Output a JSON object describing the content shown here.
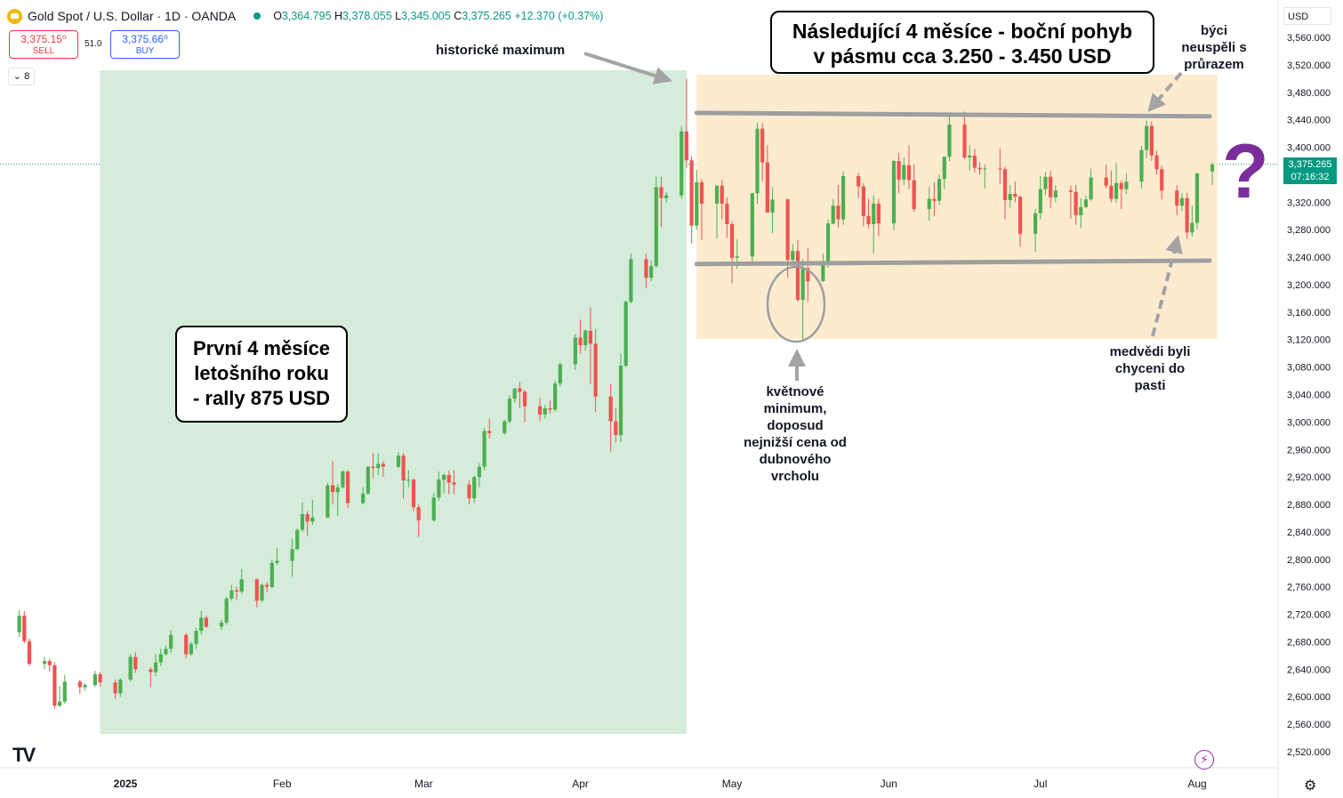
{
  "header": {
    "title": "Gold Spot / U.S. Dollar · 1D · OANDA",
    "ohlc": {
      "o_label": "O",
      "o": "3,364.795",
      "h_label": "H",
      "h": "3,378.055",
      "l_label": "L",
      "l": "3,345.005",
      "c_label": "C",
      "c": "3,375.265",
      "change": "+12.370 (+0.37%)"
    }
  },
  "trade": {
    "sell_price": "3,375.15⁰",
    "sell_label": "SELL",
    "spread": "51.0",
    "buy_price": "3,375.66⁰",
    "buy_label": "BUY"
  },
  "indicators_toggle": "8",
  "currency": "USD",
  "current_price": {
    "price": "3,375.265",
    "countdown": "07:16:32"
  },
  "annotations": {
    "box_sideways": [
      "Následující 4 měsíce - boční pohyb",
      "v pásmu cca 3.250 - 3.450 USD"
    ],
    "box_rally": [
      "První 4 měsíce",
      "letošního roku",
      "- rally 875 USD"
    ],
    "ath": "historické maximum",
    "bulls": [
      "býci",
      "neuspěli s",
      "průrazem"
    ],
    "bears": [
      "medvědi byli",
      "chyceni do",
      "pasti"
    ],
    "may_low": [
      "květnové",
      "minimum,",
      "doposud",
      "nejnižší cena od",
      "dubnového",
      "vrcholu"
    ],
    "question": "?"
  },
  "colors": {
    "up": "#089981",
    "down": "#f23645",
    "up_candle": "#4caf50",
    "down_candle": "#ef5350",
    "green_zone": "#d4ecd9",
    "orange_zone": "#fdebcf",
    "arrow": "#a3a3a3",
    "purple": "#7b2d9b"
  },
  "chart_data": {
    "type": "candlestick",
    "instrument": "Gold Spot / U.S. Dollar",
    "timeframe": "1D",
    "ylim": [
      2500,
      3580
    ],
    "y_ticks": [
      "2,520.000",
      "2,560.000",
      "2,600.000",
      "2,640.000",
      "2,680.000",
      "2,720.000",
      "2,760.000",
      "2,800.000",
      "2,840.000",
      "2,880.000",
      "2,920.000",
      "2,960.000",
      "3,000.000",
      "3,040.000",
      "3,080.000",
      "3,120.000",
      "3,160.000",
      "3,200.000",
      "3,240.000",
      "3,280.000",
      "3,320.000",
      "3,360.000",
      "3,400.000",
      "3,440.000",
      "3,480.000",
      "3,520.000",
      "3,560.000"
    ],
    "x_ticks": [
      {
        "label": "2025",
        "date": "2025-01-01",
        "bold": true
      },
      {
        "label": "Feb",
        "date": "2025-02-01"
      },
      {
        "label": "Mar",
        "date": "2025-03-01"
      },
      {
        "label": "Apr",
        "date": "2025-04-01"
      },
      {
        "label": "May",
        "date": "2025-05-01"
      },
      {
        "label": "Jun",
        "date": "2025-06-01"
      },
      {
        "label": "Jul",
        "date": "2025-07-01"
      },
      {
        "label": "Aug",
        "date": "2025-08-01"
      }
    ],
    "zones": [
      {
        "name": "rally",
        "from": "2024-12-27",
        "to": "2025-04-22",
        "y_from": 2550,
        "y_to": 3510
      },
      {
        "name": "range",
        "from": "2025-04-24",
        "to": "2025-08-05",
        "y_from": 3120,
        "y_to": 3510
      }
    ],
    "trendlines": [
      {
        "name": "resistance",
        "from": "2025-04-24",
        "to": "2025-08-01",
        "y_from": 3450,
        "y_to": 3445
      },
      {
        "name": "support",
        "from": "2025-04-24",
        "to": "2025-08-01",
        "y_from": 3230,
        "y_to": 3235
      }
    ],
    "current_price": 3375.265,
    "candles": [
      [
        "2024-12-11",
        2694,
        2726,
        2687,
        2718
      ],
      [
        "2024-12-12",
        2718,
        2725,
        2678,
        2681
      ],
      [
        "2024-12-13",
        2681,
        2685,
        2645,
        2648
      ],
      [
        "2024-12-16",
        2648,
        2658,
        2640,
        2652
      ],
      [
        "2024-12-17",
        2652,
        2655,
        2637,
        2646
      ],
      [
        "2024-12-18",
        2646,
        2650,
        2583,
        2587
      ],
      [
        "2024-12-19",
        2587,
        2616,
        2585,
        2593
      ],
      [
        "2024-12-20",
        2593,
        2632,
        2590,
        2622
      ],
      [
        "2024-12-23",
        2622,
        2625,
        2604,
        2614
      ],
      [
        "2024-12-24",
        2614,
        2620,
        2609,
        2617
      ],
      [
        "2024-12-26",
        2617,
        2638,
        2614,
        2633
      ],
      [
        "2024-12-27",
        2633,
        2636,
        2615,
        2621
      ],
      [
        "2024-12-30",
        2621,
        2625,
        2597,
        2605
      ],
      [
        "2024-12-31",
        2605,
        2627,
        2600,
        2625
      ],
      [
        "2025-01-02",
        2625,
        2662,
        2622,
        2658
      ],
      [
        "2025-01-03",
        2658,
        2665,
        2635,
        2640
      ],
      [
        "2025-01-06",
        2640,
        2643,
        2614,
        2636
      ],
      [
        "2025-01-07",
        2636,
        2662,
        2630,
        2650
      ],
      [
        "2025-01-08",
        2650,
        2670,
        2645,
        2662
      ],
      [
        "2025-01-09",
        2662,
        2675,
        2660,
        2670
      ],
      [
        "2025-01-10",
        2670,
        2697,
        2664,
        2690
      ],
      [
        "2025-01-13",
        2690,
        2693,
        2656,
        2662
      ],
      [
        "2025-01-14",
        2662,
        2680,
        2660,
        2677
      ],
      [
        "2025-01-15",
        2677,
        2700,
        2670,
        2696
      ],
      [
        "2025-01-16",
        2696,
        2725,
        2690,
        2715
      ],
      [
        "2025-01-17",
        2715,
        2718,
        2700,
        2702
      ],
      [
        "2025-01-20",
        2702,
        2712,
        2697,
        2708
      ],
      [
        "2025-01-21",
        2708,
        2746,
        2705,
        2743
      ],
      [
        "2025-01-22",
        2743,
        2763,
        2740,
        2755
      ],
      [
        "2025-01-23",
        2755,
        2760,
        2741,
        2753
      ],
      [
        "2025-01-24",
        2753,
        2786,
        2750,
        2771
      ],
      [
        "2025-01-27",
        2771,
        2772,
        2730,
        2740
      ],
      [
        "2025-01-28",
        2740,
        2765,
        2738,
        2763
      ],
      [
        "2025-01-29",
        2763,
        2767,
        2752,
        2760
      ],
      [
        "2025-01-30",
        2760,
        2800,
        2758,
        2795
      ],
      [
        "2025-01-31",
        2795,
        2817,
        2792,
        2798
      ],
      [
        "2025-02-03",
        2798,
        2830,
        2775,
        2815
      ],
      [
        "2025-02-04",
        2815,
        2845,
        2813,
        2843
      ],
      [
        "2025-02-05",
        2843,
        2883,
        2840,
        2866
      ],
      [
        "2025-02-06",
        2866,
        2870,
        2834,
        2855
      ],
      [
        "2025-02-07",
        2855,
        2887,
        2850,
        2861
      ],
      [
        "2025-02-10",
        2861,
        2912,
        2860,
        2908
      ],
      [
        "2025-02-11",
        2908,
        2943,
        2880,
        2898
      ],
      [
        "2025-02-12",
        2898,
        2910,
        2863,
        2905
      ],
      [
        "2025-02-13",
        2905,
        2930,
        2903,
        2928
      ],
      [
        "2025-02-14",
        2928,
        2930,
        2875,
        2882
      ],
      [
        "2025-02-17",
        2882,
        2905,
        2880,
        2896
      ],
      [
        "2025-02-18",
        2896,
        2936,
        2894,
        2935
      ],
      [
        "2025-02-19",
        2935,
        2955,
        2918,
        2933
      ],
      [
        "2025-02-20",
        2933,
        2955,
        2923,
        2939
      ],
      [
        "2025-02-21",
        2939,
        2943,
        2920,
        2935
      ],
      [
        "2025-02-24",
        2935,
        2956,
        2933,
        2951
      ],
      [
        "2025-02-25",
        2951,
        2955,
        2889,
        2915
      ],
      [
        "2025-02-26",
        2915,
        2930,
        2905,
        2916
      ],
      [
        "2025-02-27",
        2916,
        2918,
        2870,
        2876
      ],
      [
        "2025-02-28",
        2876,
        2880,
        2833,
        2857
      ],
      [
        "2025-03-03",
        2857,
        2897,
        2855,
        2890
      ],
      [
        "2025-03-04",
        2890,
        2928,
        2885,
        2916
      ],
      [
        "2025-03-05",
        2916,
        2925,
        2896,
        2923
      ],
      [
        "2025-03-06",
        2923,
        2929,
        2895,
        2912
      ],
      [
        "2025-03-07",
        2912,
        2930,
        2895,
        2909
      ],
      [
        "2025-03-10",
        2909,
        2915,
        2880,
        2889
      ],
      [
        "2025-03-11",
        2889,
        2922,
        2882,
        2920
      ],
      [
        "2025-03-12",
        2920,
        2940,
        2905,
        2935
      ],
      [
        "2025-03-13",
        2935,
        2991,
        2930,
        2987
      ],
      [
        "2025-03-14",
        2987,
        3005,
        2976,
        2984
      ],
      [
        "2025-03-17",
        2984,
        3003,
        2981,
        3001
      ],
      [
        "2025-03-18",
        3001,
        3039,
        2998,
        3034
      ],
      [
        "2025-03-19",
        3034,
        3043,
        3028,
        3049
      ],
      [
        "2025-03-20",
        3049,
        3058,
        3020,
        3044
      ],
      [
        "2025-03-21",
        3044,
        3047,
        3000,
        3023
      ],
      [
        "2025-03-24",
        3023,
        3035,
        3001,
        3011
      ],
      [
        "2025-03-25",
        3011,
        3025,
        3005,
        3020
      ],
      [
        "2025-03-26",
        3020,
        3032,
        3012,
        3018
      ],
      [
        "2025-03-27",
        3018,
        3060,
        3015,
        3056
      ],
      [
        "2025-03-28",
        3056,
        3087,
        3052,
        3084
      ],
      [
        "2025-03-31",
        3084,
        3128,
        3076,
        3123
      ],
      [
        "2025-04-01",
        3123,
        3149,
        3100,
        3112
      ],
      [
        "2025-04-02",
        3112,
        3135,
        3104,
        3133
      ],
      [
        "2025-04-03",
        3133,
        3167,
        3055,
        3114
      ],
      [
        "2025-04-04",
        3114,
        3135,
        3015,
        3037
      ],
      [
        "2025-04-07",
        3037,
        3055,
        2957,
        3001
      ],
      [
        "2025-04-08",
        3001,
        3020,
        2970,
        2981
      ],
      [
        "2025-04-09",
        2981,
        3100,
        2971,
        3082
      ],
      [
        "2025-04-10",
        3082,
        3177,
        3080,
        3175
      ],
      [
        "2025-04-11",
        3175,
        3245,
        3173,
        3237
      ],
      [
        "2025-04-14",
        3237,
        3245,
        3195,
        3210
      ],
      [
        "2025-04-15",
        3210,
        3235,
        3205,
        3227
      ],
      [
        "2025-04-16",
        3227,
        3357,
        3225,
        3342
      ],
      [
        "2025-04-17",
        3342,
        3357,
        3284,
        3326
      ],
      [
        "2025-04-18",
        3326,
        3335,
        3320,
        3330
      ],
      [
        "2025-04-21",
        3330,
        3431,
        3325,
        3423
      ],
      [
        "2025-04-22",
        3423,
        3500,
        3370,
        3381
      ],
      [
        "2025-04-23",
        3381,
        3387,
        3260,
        3286
      ],
      [
        "2025-04-24",
        3286,
        3367,
        3280,
        3349
      ],
      [
        "2025-04-25",
        3349,
        3354,
        3265,
        3318
      ],
      [
        "2025-04-28",
        3318,
        3345,
        3267,
        3344
      ],
      [
        "2025-04-29",
        3344,
        3353,
        3295,
        3318
      ],
      [
        "2025-04-30",
        3318,
        3327,
        3268,
        3288
      ],
      [
        "2025-05-01",
        3288,
        3292,
        3202,
        3239
      ],
      [
        "2025-05-02",
        3239,
        3266,
        3223,
        3241
      ],
      [
        "2025-05-05",
        3241,
        3334,
        3231,
        3333
      ],
      [
        "2025-05-06",
        3333,
        3436,
        3318,
        3427
      ],
      [
        "2025-05-07",
        3427,
        3435,
        3350,
        3378
      ],
      [
        "2025-05-08",
        3378,
        3403,
        3306,
        3305
      ],
      [
        "2025-05-09",
        3305,
        3342,
        3275,
        3324
      ],
      [
        "2025-05-12",
        3324,
        3325,
        3210,
        3236
      ],
      [
        "2025-05-13",
        3236,
        3259,
        3228,
        3249
      ],
      [
        "2025-05-14",
        3249,
        3265,
        3175,
        3178
      ],
      [
        "2025-05-15",
        3178,
        3237,
        3120,
        3224
      ],
      [
        "2025-05-16",
        3224,
        3253,
        3175,
        3205
      ],
      [
        "2025-05-19",
        3205,
        3245,
        3204,
        3229
      ],
      [
        "2025-05-20",
        3229,
        3295,
        3225,
        3289
      ],
      [
        "2025-05-21",
        3289,
        3325,
        3288,
        3315
      ],
      [
        "2025-05-22",
        3315,
        3345,
        3283,
        3295
      ],
      [
        "2025-05-23",
        3295,
        3365,
        3287,
        3358
      ],
      [
        "2025-05-26",
        3358,
        3363,
        3326,
        3343
      ],
      [
        "2025-05-27",
        3343,
        3348,
        3285,
        3300
      ],
      [
        "2025-05-28",
        3300,
        3325,
        3282,
        3288
      ],
      [
        "2025-05-29",
        3288,
        3330,
        3245,
        3318
      ],
      [
        "2025-05-30",
        3318,
        3325,
        3271,
        3289
      ],
      [
        "2025-06-02",
        3289,
        3382,
        3279,
        3380
      ],
      [
        "2025-06-03",
        3380,
        3392,
        3333,
        3353
      ],
      [
        "2025-06-04",
        3353,
        3385,
        3345,
        3374
      ],
      [
        "2025-06-05",
        3374,
        3403,
        3339,
        3352
      ],
      [
        "2025-06-06",
        3352,
        3375,
        3306,
        3310
      ],
      [
        "2025-06-09",
        3310,
        3342,
        3293,
        3325
      ],
      [
        "2025-06-10",
        3325,
        3349,
        3300,
        3322
      ],
      [
        "2025-06-11",
        3322,
        3360,
        3316,
        3354
      ],
      [
        "2025-06-12",
        3354,
        3387,
        3339,
        3386
      ],
      [
        "2025-06-13",
        3386,
        3446,
        3380,
        3433
      ],
      [
        "2025-06-16",
        3433,
        3452,
        3383,
        3385
      ],
      [
        "2025-06-17",
        3385,
        3403,
        3366,
        3388
      ],
      [
        "2025-06-18",
        3388,
        3398,
        3363,
        3370
      ],
      [
        "2025-06-19",
        3370,
        3378,
        3360,
        3368
      ],
      [
        "2025-06-20",
        3368,
        3375,
        3340,
        3369
      ],
      [
        "2025-06-23",
        3369,
        3398,
        3347,
        3368
      ],
      [
        "2025-06-24",
        3368,
        3372,
        3295,
        3323
      ],
      [
        "2025-06-25",
        3323,
        3345,
        3312,
        3332
      ],
      [
        "2025-06-26",
        3332,
        3350,
        3320,
        3328
      ],
      [
        "2025-06-27",
        3328,
        3330,
        3255,
        3274
      ],
      [
        "2025-06-30",
        3274,
        3310,
        3247,
        3304
      ],
      [
        "2025-07-01",
        3304,
        3358,
        3295,
        3339
      ],
      [
        "2025-07-02",
        3339,
        3364,
        3330,
        3357
      ],
      [
        "2025-07-03",
        3357,
        3366,
        3311,
        3327
      ],
      [
        "2025-07-04",
        3327,
        3345,
        3320,
        3337
      ],
      [
        "2025-07-07",
        3337,
        3344,
        3296,
        3335
      ],
      [
        "2025-07-08",
        3335,
        3345,
        3287,
        3301
      ],
      [
        "2025-07-09",
        3301,
        3326,
        3282,
        3313
      ],
      [
        "2025-07-10",
        3313,
        3330,
        3311,
        3324
      ],
      [
        "2025-07-11",
        3324,
        3369,
        3322,
        3356
      ],
      [
        "2025-07-14",
        3356,
        3375,
        3340,
        3344
      ],
      [
        "2025-07-15",
        3344,
        3366,
        3320,
        3325
      ],
      [
        "2025-07-16",
        3325,
        3377,
        3319,
        3348
      ],
      [
        "2025-07-17",
        3348,
        3352,
        3310,
        3339
      ],
      [
        "2025-07-18",
        3339,
        3362,
        3332,
        3350
      ],
      [
        "2025-07-21",
        3350,
        3402,
        3340,
        3396
      ],
      [
        "2025-07-22",
        3396,
        3439,
        3384,
        3431
      ],
      [
        "2025-07-23",
        3431,
        3438,
        3380,
        3388
      ],
      [
        "2025-07-24",
        3388,
        3395,
        3360,
        3368
      ],
      [
        "2025-07-25",
        3368,
        3373,
        3324,
        3337
      ],
      [
        "2025-07-28",
        3337,
        3345,
        3301,
        3315
      ],
      [
        "2025-07-29",
        3315,
        3333,
        3307,
        3326
      ],
      [
        "2025-07-30",
        3326,
        3334,
        3267,
        3276
      ],
      [
        "2025-07-31",
        3276,
        3315,
        3270,
        3290
      ],
      [
        "2025-08-01",
        3290,
        3363,
        3281,
        3362
      ],
      [
        "2025-08-04",
        3365,
        3378,
        3345,
        3375
      ]
    ]
  }
}
